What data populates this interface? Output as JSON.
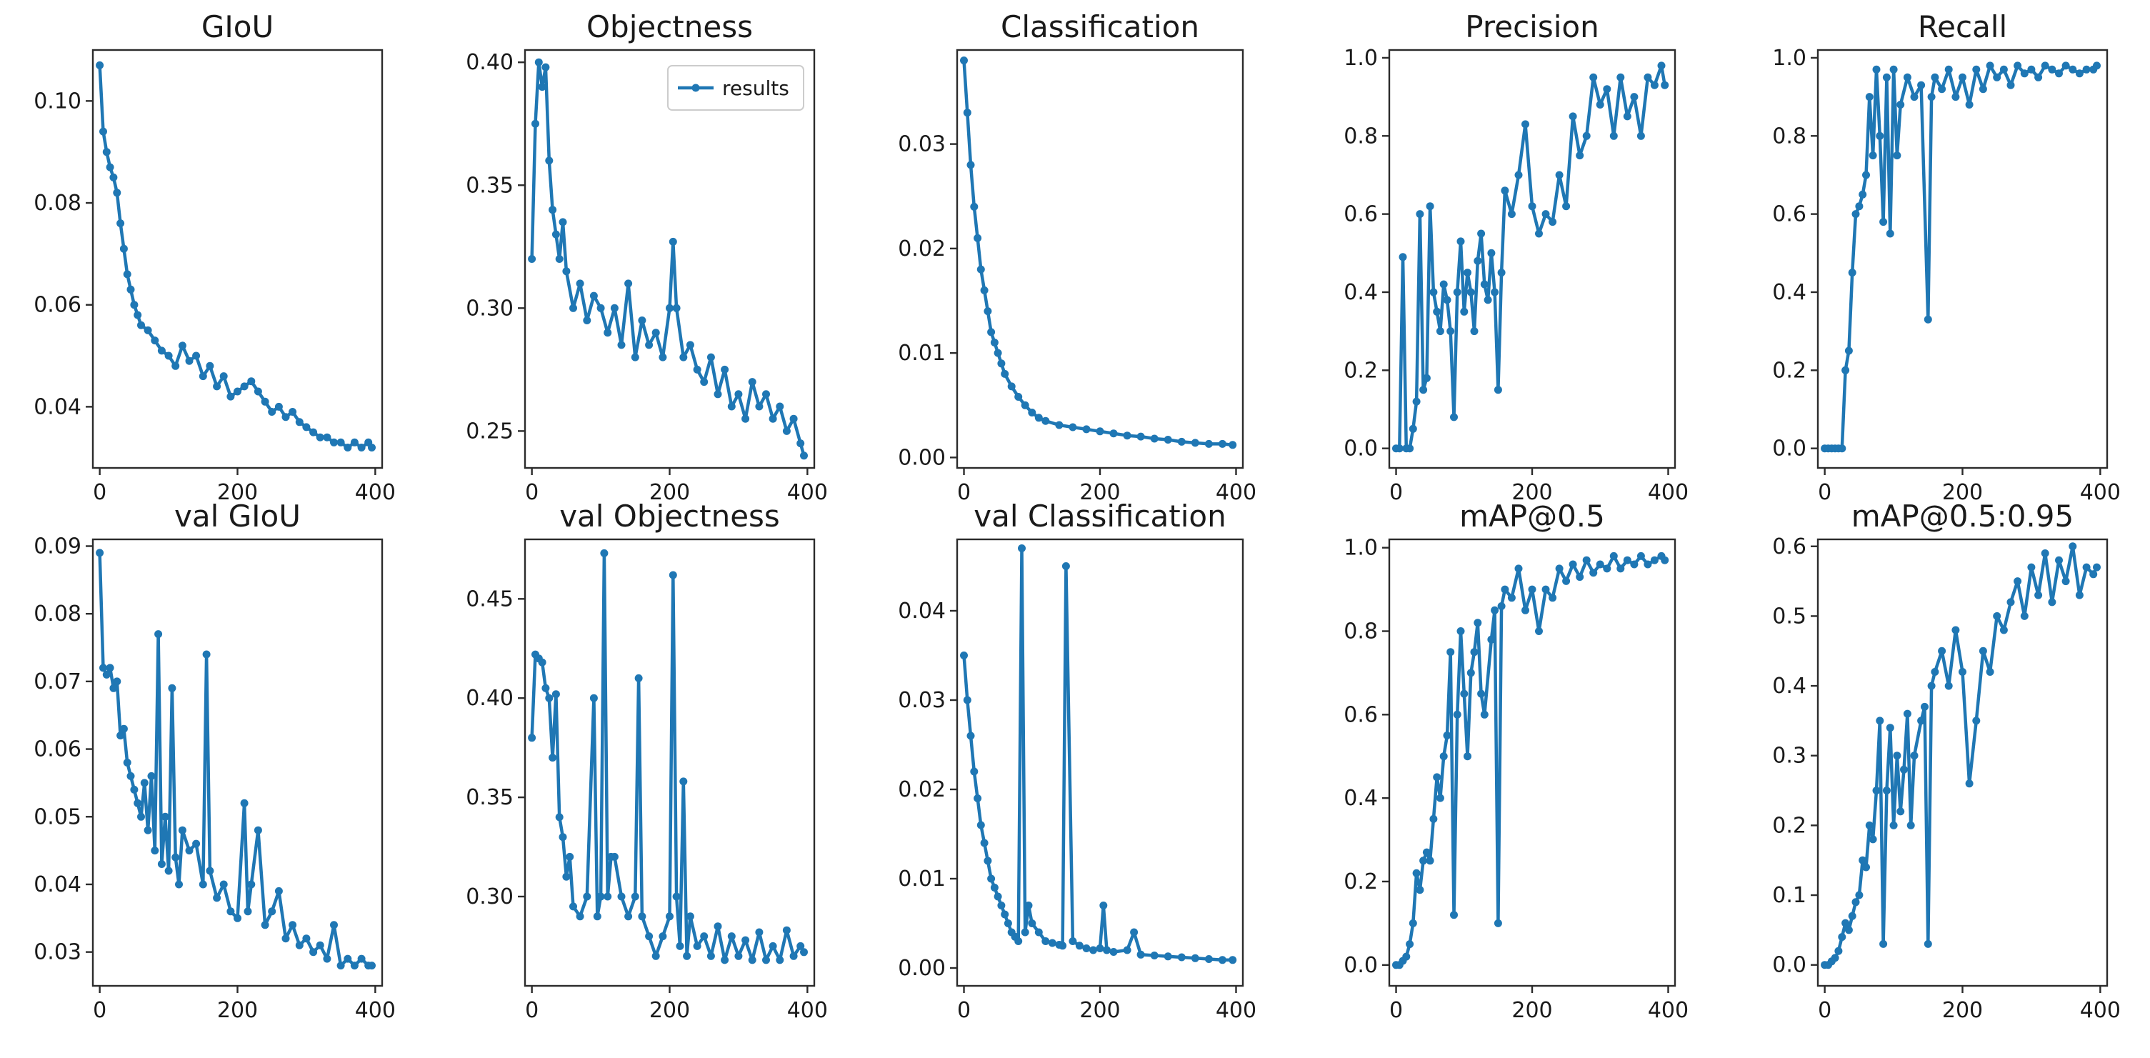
{
  "chart_data": [
    {
      "type": "line",
      "title": "GIoU",
      "series_name": "results",
      "xlabel": "",
      "ylabel": "",
      "xlim": [
        -10,
        410
      ],
      "ylim": [
        0.028,
        0.11
      ],
      "xticks": [
        0,
        200,
        400
      ],
      "xtick_labels": [
        "0",
        "200",
        "400"
      ],
      "yticks": [
        0.04,
        0.06,
        0.08,
        0.1
      ],
      "ytick_labels": [
        "0.04",
        "0.06",
        "0.08",
        "0.10"
      ],
      "x": [
        0,
        5,
        10,
        15,
        20,
        25,
        30,
        35,
        40,
        45,
        50,
        55,
        60,
        70,
        80,
        90,
        100,
        110,
        120,
        130,
        140,
        150,
        160,
        170,
        180,
        190,
        200,
        210,
        220,
        230,
        240,
        250,
        260,
        270,
        280,
        290,
        300,
        310,
        320,
        330,
        340,
        350,
        360,
        370,
        380,
        390,
        395
      ],
      "y": [
        0.107,
        0.094,
        0.09,
        0.087,
        0.085,
        0.082,
        0.076,
        0.071,
        0.066,
        0.063,
        0.06,
        0.058,
        0.056,
        0.055,
        0.053,
        0.051,
        0.05,
        0.048,
        0.052,
        0.049,
        0.05,
        0.046,
        0.048,
        0.044,
        0.046,
        0.042,
        0.043,
        0.044,
        0.045,
        0.043,
        0.041,
        0.039,
        0.04,
        0.038,
        0.039,
        0.037,
        0.036,
        0.035,
        0.034,
        0.034,
        0.033,
        0.033,
        0.032,
        0.033,
        0.032,
        0.033,
        0.032
      ]
    },
    {
      "type": "line",
      "title": "Objectness",
      "series_name": "results",
      "xlabel": "",
      "ylabel": "",
      "xlim": [
        -10,
        410
      ],
      "ylim": [
        0.235,
        0.405
      ],
      "xticks": [
        0,
        200,
        400
      ],
      "xtick_labels": [
        "0",
        "200",
        "400"
      ],
      "yticks": [
        0.25,
        0.3,
        0.35,
        0.4
      ],
      "ytick_labels": [
        "0.25",
        "0.30",
        "0.35",
        "0.40"
      ],
      "legend": {
        "entries": [
          "results"
        ],
        "position": "upper right"
      },
      "x": [
        0,
        5,
        10,
        15,
        20,
        25,
        30,
        35,
        40,
        45,
        50,
        60,
        70,
        80,
        90,
        100,
        110,
        120,
        130,
        140,
        150,
        160,
        170,
        180,
        190,
        200,
        205,
        210,
        220,
        230,
        240,
        250,
        260,
        270,
        280,
        290,
        300,
        310,
        320,
        330,
        340,
        350,
        360,
        370,
        380,
        390,
        395
      ],
      "y": [
        0.32,
        0.375,
        0.4,
        0.39,
        0.398,
        0.36,
        0.34,
        0.33,
        0.32,
        0.335,
        0.315,
        0.3,
        0.31,
        0.295,
        0.305,
        0.3,
        0.29,
        0.3,
        0.285,
        0.31,
        0.28,
        0.295,
        0.285,
        0.29,
        0.28,
        0.3,
        0.327,
        0.3,
        0.28,
        0.285,
        0.275,
        0.27,
        0.28,
        0.265,
        0.275,
        0.26,
        0.265,
        0.255,
        0.27,
        0.26,
        0.265,
        0.255,
        0.26,
        0.25,
        0.255,
        0.245,
        0.24
      ]
    },
    {
      "type": "line",
      "title": "Classification",
      "series_name": "results",
      "xlabel": "",
      "ylabel": "",
      "xlim": [
        -10,
        410
      ],
      "ylim": [
        -0.001,
        0.039
      ],
      "xticks": [
        0,
        200,
        400
      ],
      "xtick_labels": [
        "0",
        "200",
        "400"
      ],
      "yticks": [
        0.0,
        0.01,
        0.02,
        0.03
      ],
      "ytick_labels": [
        "0.00",
        "0.01",
        "0.02",
        "0.03"
      ],
      "x": [
        0,
        5,
        10,
        15,
        20,
        25,
        30,
        35,
        40,
        45,
        50,
        55,
        60,
        70,
        80,
        90,
        100,
        110,
        120,
        140,
        160,
        180,
        200,
        220,
        240,
        260,
        280,
        300,
        320,
        340,
        360,
        380,
        395
      ],
      "y": [
        0.038,
        0.033,
        0.028,
        0.024,
        0.021,
        0.018,
        0.016,
        0.014,
        0.012,
        0.011,
        0.01,
        0.009,
        0.008,
        0.0068,
        0.0058,
        0.005,
        0.0043,
        0.0038,
        0.0035,
        0.0031,
        0.0029,
        0.0027,
        0.0025,
        0.0023,
        0.0021,
        0.002,
        0.0018,
        0.0017,
        0.0015,
        0.0014,
        0.0013,
        0.0013,
        0.0012
      ]
    },
    {
      "type": "line",
      "title": "Precision",
      "series_name": "results",
      "xlabel": "",
      "ylabel": "",
      "xlim": [
        -10,
        410
      ],
      "ylim": [
        -0.05,
        1.02
      ],
      "xticks": [
        0,
        200,
        400
      ],
      "xtick_labels": [
        "0",
        "200",
        "400"
      ],
      "yticks": [
        0.0,
        0.2,
        0.4,
        0.6,
        0.8,
        1.0
      ],
      "ytick_labels": [
        "0.0",
        "0.2",
        "0.4",
        "0.6",
        "0.8",
        "1.0"
      ],
      "x": [
        0,
        5,
        10,
        15,
        20,
        25,
        30,
        35,
        40,
        45,
        50,
        55,
        60,
        65,
        70,
        75,
        80,
        85,
        90,
        95,
        100,
        105,
        110,
        115,
        120,
        125,
        130,
        135,
        140,
        145,
        150,
        155,
        160,
        170,
        180,
        190,
        200,
        210,
        220,
        230,
        240,
        250,
        260,
        270,
        280,
        290,
        300,
        310,
        320,
        330,
        340,
        350,
        360,
        370,
        380,
        390,
        395
      ],
      "y": [
        0.0,
        0.0,
        0.49,
        0.0,
        0.0,
        0.05,
        0.12,
        0.6,
        0.15,
        0.18,
        0.62,
        0.4,
        0.35,
        0.3,
        0.42,
        0.38,
        0.3,
        0.08,
        0.4,
        0.53,
        0.35,
        0.45,
        0.4,
        0.3,
        0.48,
        0.55,
        0.42,
        0.38,
        0.5,
        0.4,
        0.15,
        0.45,
        0.66,
        0.6,
        0.7,
        0.83,
        0.62,
        0.55,
        0.6,
        0.58,
        0.7,
        0.62,
        0.85,
        0.75,
        0.8,
        0.95,
        0.88,
        0.92,
        0.8,
        0.95,
        0.85,
        0.9,
        0.8,
        0.95,
        0.93,
        0.98,
        0.93
      ]
    },
    {
      "type": "line",
      "title": "Recall",
      "series_name": "results",
      "xlabel": "",
      "ylabel": "",
      "xlim": [
        -10,
        410
      ],
      "ylim": [
        -0.05,
        1.02
      ],
      "xticks": [
        0,
        200,
        400
      ],
      "xtick_labels": [
        "0",
        "200",
        "400"
      ],
      "yticks": [
        0.0,
        0.2,
        0.4,
        0.6,
        0.8,
        1.0
      ],
      "ytick_labels": [
        "0.0",
        "0.2",
        "0.4",
        "0.6",
        "0.8",
        "1.0"
      ],
      "x": [
        0,
        5,
        10,
        15,
        20,
        25,
        30,
        35,
        40,
        45,
        50,
        55,
        60,
        65,
        70,
        75,
        80,
        85,
        90,
        95,
        100,
        105,
        110,
        120,
        130,
        140,
        150,
        155,
        160,
        170,
        180,
        190,
        200,
        210,
        220,
        230,
        240,
        250,
        260,
        270,
        280,
        290,
        300,
        310,
        320,
        330,
        340,
        350,
        360,
        370,
        380,
        390,
        395
      ],
      "y": [
        0.0,
        0.0,
        0.0,
        0.0,
        0.0,
        0.0,
        0.2,
        0.25,
        0.45,
        0.6,
        0.62,
        0.65,
        0.7,
        0.9,
        0.75,
        0.97,
        0.8,
        0.58,
        0.95,
        0.55,
        0.97,
        0.75,
        0.88,
        0.95,
        0.9,
        0.93,
        0.33,
        0.9,
        0.95,
        0.92,
        0.97,
        0.9,
        0.95,
        0.88,
        0.97,
        0.92,
        0.98,
        0.95,
        0.97,
        0.93,
        0.98,
        0.96,
        0.97,
        0.95,
        0.98,
        0.97,
        0.96,
        0.98,
        0.97,
        0.96,
        0.97,
        0.97,
        0.98
      ]
    },
    {
      "type": "line",
      "title": "val GIoU",
      "series_name": "results",
      "xlabel": "",
      "ylabel": "",
      "xlim": [
        -10,
        410
      ],
      "ylim": [
        0.025,
        0.091
      ],
      "xticks": [
        0,
        200,
        400
      ],
      "xtick_labels": [
        "0",
        "200",
        "400"
      ],
      "yticks": [
        0.03,
        0.04,
        0.05,
        0.06,
        0.07,
        0.08,
        0.09
      ],
      "ytick_labels": [
        "0.03",
        "0.04",
        "0.05",
        "0.06",
        "0.07",
        "0.08",
        "0.09"
      ],
      "x": [
        0,
        5,
        10,
        15,
        20,
        25,
        30,
        35,
        40,
        45,
        50,
        55,
        60,
        65,
        70,
        75,
        80,
        85,
        90,
        95,
        100,
        105,
        110,
        115,
        120,
        130,
        140,
        150,
        155,
        160,
        170,
        180,
        190,
        200,
        210,
        215,
        220,
        230,
        240,
        250,
        260,
        270,
        280,
        290,
        300,
        310,
        320,
        330,
        340,
        350,
        360,
        370,
        380,
        390,
        395
      ],
      "y": [
        0.089,
        0.072,
        0.071,
        0.072,
        0.069,
        0.07,
        0.062,
        0.063,
        0.058,
        0.056,
        0.054,
        0.052,
        0.05,
        0.055,
        0.048,
        0.056,
        0.045,
        0.077,
        0.043,
        0.05,
        0.042,
        0.069,
        0.044,
        0.04,
        0.048,
        0.045,
        0.046,
        0.04,
        0.074,
        0.042,
        0.038,
        0.04,
        0.036,
        0.035,
        0.052,
        0.036,
        0.04,
        0.048,
        0.034,
        0.036,
        0.039,
        0.032,
        0.034,
        0.031,
        0.032,
        0.03,
        0.031,
        0.029,
        0.034,
        0.028,
        0.029,
        0.028,
        0.029,
        0.028,
        0.028
      ]
    },
    {
      "type": "line",
      "title": "val Objectness",
      "series_name": "results",
      "xlabel": "",
      "ylabel": "",
      "xlim": [
        -10,
        410
      ],
      "ylim": [
        0.255,
        0.48
      ],
      "xticks": [
        0,
        200,
        400
      ],
      "xtick_labels": [
        "0",
        "200",
        "400"
      ],
      "yticks": [
        0.3,
        0.35,
        0.4,
        0.45
      ],
      "ytick_labels": [
        "0.30",
        "0.35",
        "0.40",
        "0.45"
      ],
      "x": [
        0,
        5,
        10,
        15,
        20,
        25,
        30,
        35,
        40,
        45,
        50,
        55,
        60,
        70,
        80,
        90,
        95,
        100,
        105,
        110,
        115,
        120,
        130,
        140,
        150,
        155,
        160,
        170,
        180,
        190,
        200,
        205,
        210,
        215,
        220,
        225,
        230,
        240,
        250,
        260,
        270,
        280,
        290,
        300,
        310,
        320,
        330,
        340,
        350,
        360,
        370,
        380,
        390,
        395
      ],
      "y": [
        0.38,
        0.422,
        0.42,
        0.418,
        0.405,
        0.4,
        0.37,
        0.402,
        0.34,
        0.33,
        0.31,
        0.32,
        0.295,
        0.29,
        0.3,
        0.4,
        0.29,
        0.3,
        0.473,
        0.3,
        0.32,
        0.32,
        0.3,
        0.29,
        0.3,
        0.41,
        0.29,
        0.28,
        0.27,
        0.28,
        0.29,
        0.462,
        0.3,
        0.275,
        0.358,
        0.27,
        0.29,
        0.275,
        0.28,
        0.27,
        0.285,
        0.268,
        0.28,
        0.27,
        0.278,
        0.268,
        0.282,
        0.268,
        0.275,
        0.268,
        0.283,
        0.27,
        0.275,
        0.272
      ]
    },
    {
      "type": "line",
      "title": "val Classification",
      "series_name": "results",
      "xlabel": "",
      "ylabel": "",
      "xlim": [
        -10,
        410
      ],
      "ylim": [
        -0.002,
        0.048
      ],
      "xticks": [
        0,
        200,
        400
      ],
      "xtick_labels": [
        "0",
        "200",
        "400"
      ],
      "yticks": [
        0.0,
        0.01,
        0.02,
        0.03,
        0.04
      ],
      "ytick_labels": [
        "0.00",
        "0.01",
        "0.02",
        "0.03",
        "0.04"
      ],
      "x": [
        0,
        5,
        10,
        15,
        20,
        25,
        30,
        35,
        40,
        45,
        50,
        55,
        60,
        65,
        70,
        75,
        80,
        85,
        90,
        95,
        100,
        110,
        120,
        130,
        140,
        145,
        150,
        160,
        170,
        180,
        190,
        200,
        205,
        210,
        220,
        240,
        250,
        260,
        280,
        300,
        320,
        340,
        360,
        380,
        395
      ],
      "y": [
        0.035,
        0.03,
        0.026,
        0.022,
        0.019,
        0.016,
        0.014,
        0.012,
        0.01,
        0.009,
        0.008,
        0.007,
        0.006,
        0.005,
        0.004,
        0.0035,
        0.003,
        0.047,
        0.004,
        0.007,
        0.005,
        0.004,
        0.003,
        0.0028,
        0.0026,
        0.0025,
        0.045,
        0.003,
        0.0025,
        0.0022,
        0.002,
        0.0022,
        0.007,
        0.002,
        0.0018,
        0.002,
        0.004,
        0.0015,
        0.0014,
        0.0013,
        0.0012,
        0.0011,
        0.001,
        0.0009,
        0.0009
      ]
    },
    {
      "type": "line",
      "title": "mAP@0.5",
      "series_name": "results",
      "xlabel": "",
      "ylabel": "",
      "xlim": [
        -10,
        410
      ],
      "ylim": [
        -0.05,
        1.02
      ],
      "xticks": [
        0,
        200,
        400
      ],
      "xtick_labels": [
        "0",
        "200",
        "400"
      ],
      "yticks": [
        0.0,
        0.2,
        0.4,
        0.6,
        0.8,
        1.0
      ],
      "ytick_labels": [
        "0.0",
        "0.2",
        "0.4",
        "0.6",
        "0.8",
        "1.0"
      ],
      "x": [
        0,
        5,
        10,
        15,
        20,
        25,
        30,
        35,
        40,
        45,
        50,
        55,
        60,
        65,
        70,
        75,
        80,
        85,
        90,
        95,
        100,
        105,
        110,
        115,
        120,
        125,
        130,
        140,
        145,
        150,
        155,
        160,
        170,
        180,
        190,
        200,
        210,
        220,
        230,
        240,
        250,
        260,
        270,
        280,
        290,
        300,
        310,
        320,
        330,
        340,
        350,
        360,
        370,
        380,
        390,
        395
      ],
      "y": [
        0.0,
        0.0,
        0.01,
        0.02,
        0.05,
        0.1,
        0.22,
        0.18,
        0.25,
        0.27,
        0.25,
        0.35,
        0.45,
        0.4,
        0.5,
        0.55,
        0.75,
        0.12,
        0.6,
        0.8,
        0.65,
        0.5,
        0.7,
        0.75,
        0.82,
        0.65,
        0.6,
        0.78,
        0.85,
        0.1,
        0.86,
        0.9,
        0.88,
        0.95,
        0.85,
        0.9,
        0.8,
        0.9,
        0.88,
        0.95,
        0.92,
        0.96,
        0.93,
        0.97,
        0.94,
        0.96,
        0.95,
        0.98,
        0.95,
        0.97,
        0.96,
        0.98,
        0.96,
        0.97,
        0.98,
        0.97
      ]
    },
    {
      "type": "line",
      "title": "mAP@0.5:0.95",
      "series_name": "results",
      "xlabel": "",
      "ylabel": "",
      "xlim": [
        -10,
        410
      ],
      "ylim": [
        -0.03,
        0.61
      ],
      "xticks": [
        0,
        200,
        400
      ],
      "xtick_labels": [
        "0",
        "200",
        "400"
      ],
      "yticks": [
        0.0,
        0.1,
        0.2,
        0.3,
        0.4,
        0.5,
        0.6
      ],
      "ytick_labels": [
        "0.0",
        "0.1",
        "0.2",
        "0.3",
        "0.4",
        "0.5",
        "0.6"
      ],
      "x": [
        0,
        5,
        10,
        15,
        20,
        25,
        30,
        35,
        40,
        45,
        50,
        55,
        60,
        65,
        70,
        75,
        80,
        85,
        90,
        95,
        100,
        105,
        110,
        115,
        120,
        125,
        130,
        140,
        145,
        150,
        155,
        160,
        170,
        180,
        190,
        200,
        210,
        220,
        230,
        240,
        250,
        260,
        270,
        280,
        290,
        300,
        310,
        320,
        330,
        340,
        350,
        360,
        370,
        380,
        390,
        395
      ],
      "y": [
        0.0,
        0.0,
        0.005,
        0.01,
        0.02,
        0.04,
        0.06,
        0.05,
        0.07,
        0.09,
        0.1,
        0.15,
        0.14,
        0.2,
        0.18,
        0.25,
        0.35,
        0.03,
        0.25,
        0.34,
        0.2,
        0.3,
        0.22,
        0.28,
        0.36,
        0.2,
        0.3,
        0.35,
        0.37,
        0.03,
        0.4,
        0.42,
        0.45,
        0.4,
        0.48,
        0.42,
        0.26,
        0.35,
        0.45,
        0.42,
        0.5,
        0.48,
        0.52,
        0.55,
        0.5,
        0.57,
        0.53,
        0.59,
        0.52,
        0.58,
        0.55,
        0.6,
        0.53,
        0.57,
        0.56,
        0.57
      ]
    }
  ]
}
